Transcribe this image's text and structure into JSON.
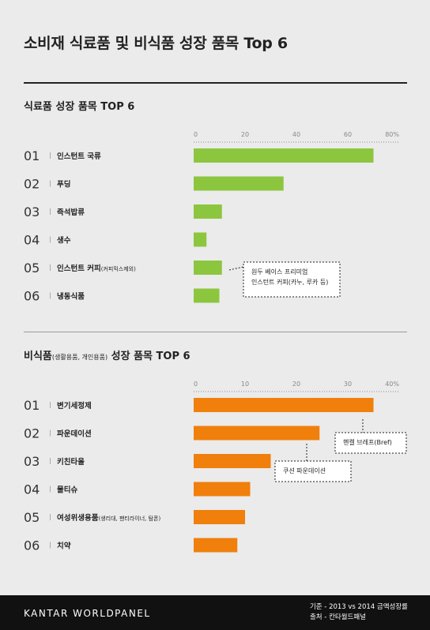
{
  "title": "소비재 식료품 및 비식품 성장 품목 Top 6",
  "footer": {
    "brand": "KANTAR WORLDPANEL",
    "basis": "기준 - 2013 vs 2014 금액성장률",
    "source": "출처 - 칸타월드패널"
  },
  "chart_data": [
    {
      "type": "bar",
      "orientation": "horizontal",
      "title": "식료품 성장 품목 TOP 6",
      "title_note": "",
      "ranks": [
        "01",
        "02",
        "03",
        "04",
        "05",
        "06"
      ],
      "categories": [
        "인스턴트 국류",
        "푸딩",
        "즉석밥류",
        "생수",
        "인스턴트 커피",
        "냉동식품"
      ],
      "category_notes": [
        "",
        "",
        "",
        "",
        "(커피믹스제외)",
        ""
      ],
      "values": [
        70,
        35,
        11,
        5,
        11,
        10
      ],
      "xlim": [
        0,
        80
      ],
      "ticks": [
        "0",
        "20",
        "40",
        "60",
        "80%"
      ],
      "color": "#8cc63f",
      "grid": false,
      "callouts": [
        {
          "target": 4,
          "lines": [
            "원두 베이스 프리미엄",
            "인스턴트 커피(카누, 루카 등)"
          ]
        }
      ]
    },
    {
      "type": "bar",
      "orientation": "horizontal",
      "title": "비식품",
      "title_note": "(생활용품, 개인용품)",
      "title_suffix": " 성장 품목 TOP 6",
      "ranks": [
        "01",
        "02",
        "03",
        "04",
        "05",
        "06"
      ],
      "categories": [
        "변기세정제",
        "파운데이션",
        "키친타올",
        "물티슈",
        "여성위생용품",
        "치약"
      ],
      "category_notes": [
        "",
        "",
        "",
        "",
        "(생리대, 팬티라이너, 탐폰)",
        ""
      ],
      "values": [
        35,
        24.5,
        15,
        11,
        10,
        8.5
      ],
      "xlim": [
        0,
        40
      ],
      "ticks": [
        "0",
        "10",
        "20",
        "30",
        "40%"
      ],
      "color": "#f07f0c",
      "grid": false,
      "callouts": [
        {
          "target": 0,
          "lines": [
            "헨켈 브레프(Bref)"
          ]
        },
        {
          "target": 1,
          "lines": [
            "쿠션 파운데이션"
          ]
        }
      ]
    }
  ]
}
